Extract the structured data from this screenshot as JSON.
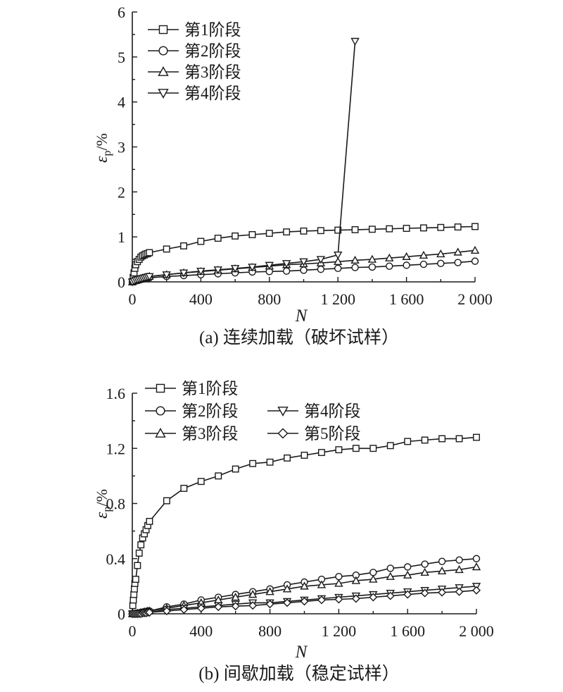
{
  "chart_data": [
    {
      "type": "line",
      "panel": "a",
      "caption": "(a) 连续加载（破坏试样）",
      "xlabel": "N",
      "ylabel_main": "ε",
      "ylabel_sub": "p",
      "ylabel_unit": "/%",
      "xlim": [
        0,
        2000
      ],
      "ylim": [
        0,
        6
      ],
      "x_ticks": [
        0,
        400,
        800,
        1200,
        1600,
        2000
      ],
      "x_tick_labels": [
        "0",
        "400",
        "800",
        "1 200",
        "1 600",
        "2 000"
      ],
      "y_ticks": [
        0,
        1,
        2,
        3,
        4,
        5,
        6
      ],
      "y_tick_labels": [
        "0",
        "1",
        "2",
        "3",
        "4",
        "5",
        "6"
      ],
      "legend_position": "top-left",
      "series": [
        {
          "name": "第1阶段",
          "marker": "square",
          "x": [
            0,
            5,
            10,
            15,
            20,
            30,
            40,
            50,
            60,
            70,
            80,
            90,
            100,
            200,
            300,
            400,
            500,
            600,
            700,
            800,
            900,
            1000,
            1100,
            1200,
            1300,
            1400,
            1500,
            1600,
            1700,
            1800,
            1900,
            2000
          ],
          "y": [
            0.0,
            0.1,
            0.2,
            0.3,
            0.38,
            0.45,
            0.5,
            0.55,
            0.58,
            0.6,
            0.62,
            0.63,
            0.65,
            0.73,
            0.8,
            0.9,
            0.97,
            1.02,
            1.05,
            1.08,
            1.11,
            1.13,
            1.14,
            1.15,
            1.16,
            1.17,
            1.18,
            1.19,
            1.2,
            1.21,
            1.22,
            1.23
          ]
        },
        {
          "name": "第2阶段",
          "marker": "circle",
          "x": [
            0,
            10,
            20,
            30,
            40,
            50,
            60,
            70,
            80,
            90,
            100,
            200,
            300,
            400,
            500,
            600,
            700,
            800,
            900,
            1000,
            1100,
            1200,
            1300,
            1400,
            1500,
            1600,
            1700,
            1800,
            1900,
            2000
          ],
          "y": [
            0.0,
            0.01,
            0.02,
            0.03,
            0.04,
            0.05,
            0.06,
            0.07,
            0.08,
            0.08,
            0.09,
            0.12,
            0.14,
            0.16,
            0.18,
            0.2,
            0.22,
            0.23,
            0.24,
            0.26,
            0.28,
            0.3,
            0.32,
            0.33,
            0.35,
            0.37,
            0.39,
            0.41,
            0.43,
            0.46
          ]
        },
        {
          "name": "第3阶段",
          "marker": "triangle-up",
          "x": [
            0,
            10,
            20,
            30,
            40,
            50,
            60,
            70,
            80,
            90,
            100,
            200,
            300,
            400,
            500,
            600,
            700,
            800,
            900,
            1000,
            1100,
            1200,
            1300,
            1400,
            1500,
            1600,
            1700,
            1800,
            1900,
            2000
          ],
          "y": [
            0.0,
            0.02,
            0.03,
            0.05,
            0.06,
            0.07,
            0.08,
            0.09,
            0.1,
            0.11,
            0.12,
            0.16,
            0.2,
            0.23,
            0.26,
            0.29,
            0.32,
            0.35,
            0.38,
            0.4,
            0.42,
            0.45,
            0.48,
            0.5,
            0.53,
            0.56,
            0.59,
            0.62,
            0.66,
            0.7
          ]
        },
        {
          "name": "第4阶段",
          "marker": "triangle-down",
          "x": [
            0,
            10,
            20,
            30,
            40,
            50,
            60,
            70,
            80,
            90,
            100,
            200,
            300,
            400,
            500,
            600,
            700,
            800,
            900,
            1000,
            1100,
            1200,
            1300
          ],
          "y": [
            0.0,
            0.02,
            0.04,
            0.05,
            0.06,
            0.07,
            0.08,
            0.09,
            0.1,
            0.11,
            0.12,
            0.16,
            0.2,
            0.24,
            0.27,
            0.3,
            0.33,
            0.37,
            0.41,
            0.45,
            0.5,
            0.6,
            5.35
          ]
        }
      ]
    },
    {
      "type": "line",
      "panel": "b",
      "caption": "(b) 间歇加载（稳定试样）",
      "xlabel": "N",
      "ylabel_main": "ε",
      "ylabel_sub": "p",
      "ylabel_unit": "/%",
      "xlim": [
        0,
        2000
      ],
      "ylim": [
        0,
        1.6
      ],
      "x_ticks": [
        0,
        400,
        800,
        1200,
        1600,
        2000
      ],
      "x_tick_labels": [
        "0",
        "400",
        "800",
        "1 200",
        "1 600",
        "2 000"
      ],
      "y_ticks": [
        0,
        0.4,
        0.8,
        1.2,
        1.6
      ],
      "y_tick_labels": [
        "0",
        "0.4",
        "0.8",
        "1.2",
        "1.6"
      ],
      "legend_position": "top-left",
      "series": [
        {
          "name": "第1阶段",
          "marker": "square",
          "x": [
            0,
            3,
            6,
            9,
            12,
            15,
            20,
            30,
            40,
            50,
            60,
            70,
            80,
            90,
            100,
            200,
            300,
            400,
            500,
            600,
            700,
            800,
            900,
            1000,
            1100,
            1200,
            1300,
            1400,
            1500,
            1600,
            1700,
            1800,
            1900,
            2000
          ],
          "y": [
            0.0,
            0.06,
            0.1,
            0.14,
            0.18,
            0.22,
            0.25,
            0.35,
            0.44,
            0.5,
            0.55,
            0.58,
            0.61,
            0.64,
            0.67,
            0.82,
            0.91,
            0.96,
            1.0,
            1.05,
            1.09,
            1.1,
            1.13,
            1.15,
            1.17,
            1.19,
            1.2,
            1.2,
            1.22,
            1.25,
            1.26,
            1.27,
            1.27,
            1.28
          ]
        },
        {
          "name": "第2阶段",
          "marker": "circle",
          "x": [
            0,
            10,
            20,
            30,
            40,
            50,
            60,
            70,
            80,
            90,
            100,
            200,
            300,
            400,
            500,
            600,
            700,
            800,
            900,
            1000,
            1100,
            1200,
            1300,
            1400,
            1500,
            1600,
            1700,
            1800,
            1900,
            2000
          ],
          "y": [
            0.0,
            0.0,
            0.0,
            0.005,
            0.005,
            0.01,
            0.01,
            0.015,
            0.015,
            0.02,
            0.02,
            0.05,
            0.07,
            0.1,
            0.12,
            0.14,
            0.16,
            0.18,
            0.21,
            0.23,
            0.25,
            0.27,
            0.28,
            0.3,
            0.33,
            0.34,
            0.36,
            0.38,
            0.39,
            0.4
          ]
        },
        {
          "name": "第3阶段",
          "marker": "triangle-up",
          "x": [
            0,
            10,
            20,
            30,
            40,
            50,
            60,
            70,
            80,
            90,
            100,
            200,
            300,
            400,
            500,
            600,
            700,
            800,
            900,
            1000,
            1100,
            1200,
            1300,
            1400,
            1500,
            1600,
            1700,
            1800,
            1900,
            2000
          ],
          "y": [
            0.0,
            0.0,
            0.0,
            0.005,
            0.005,
            0.01,
            0.01,
            0.015,
            0.015,
            0.02,
            0.02,
            0.04,
            0.06,
            0.08,
            0.1,
            0.12,
            0.14,
            0.16,
            0.18,
            0.2,
            0.21,
            0.22,
            0.24,
            0.25,
            0.27,
            0.28,
            0.3,
            0.31,
            0.32,
            0.34
          ]
        },
        {
          "name": "第4阶段",
          "marker": "triangle-down",
          "x": [
            0,
            10,
            20,
            30,
            40,
            50,
            60,
            70,
            80,
            90,
            100,
            200,
            300,
            400,
            500,
            600,
            700,
            800,
            900,
            1000,
            1100,
            1200,
            1300,
            1400,
            1500,
            1600,
            1700,
            1800,
            1900,
            2000
          ],
          "y": [
            0.0,
            0.0,
            0.0,
            0.0,
            0.005,
            0.005,
            0.005,
            0.01,
            0.01,
            0.01,
            0.01,
            0.03,
            0.04,
            0.05,
            0.06,
            0.07,
            0.08,
            0.08,
            0.09,
            0.1,
            0.11,
            0.12,
            0.13,
            0.14,
            0.15,
            0.16,
            0.17,
            0.18,
            0.19,
            0.2
          ]
        },
        {
          "name": "第5阶段",
          "marker": "diamond",
          "x": [
            0,
            10,
            20,
            30,
            40,
            50,
            60,
            70,
            80,
            90,
            100,
            200,
            300,
            400,
            500,
            600,
            700,
            800,
            900,
            1000,
            1100,
            1200,
            1300,
            1400,
            1500,
            1600,
            1700,
            1800,
            1900,
            2000
          ],
          "y": [
            0.0,
            0.0,
            0.0,
            0.0,
            0.0,
            0.0,
            0.005,
            0.005,
            0.005,
            0.01,
            0.01,
            0.02,
            0.03,
            0.04,
            0.05,
            0.055,
            0.06,
            0.07,
            0.08,
            0.09,
            0.1,
            0.105,
            0.11,
            0.12,
            0.13,
            0.14,
            0.15,
            0.155,
            0.16,
            0.17
          ]
        }
      ]
    }
  ]
}
